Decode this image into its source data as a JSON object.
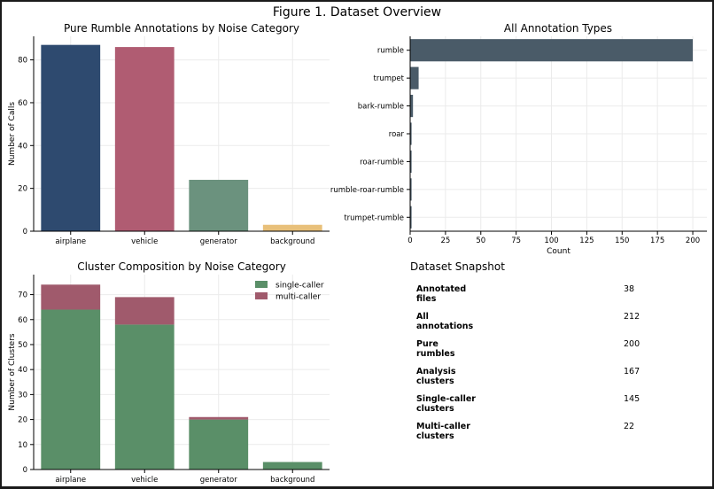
{
  "figure_title": "Figure 1. Dataset Overview",
  "colors": {
    "airplane": "#2e4a6f",
    "vehicle": "#b05c72",
    "generator": "#6b927e",
    "background": "#e8c07a",
    "annotation_bar": "#4a5b68",
    "single_caller": "#5a8f68",
    "multi_caller": "#a05a6c"
  },
  "chart_data": [
    {
      "type": "bar",
      "title": "Pure Rumble Annotations by Noise Category",
      "xlabel": "",
      "ylabel": "Number of Calls",
      "categories": [
        "airplane",
        "vehicle",
        "generator",
        "background"
      ],
      "values": [
        87,
        86,
        24,
        3
      ],
      "ylim": [
        0,
        91
      ],
      "yticks": [
        "0",
        "20",
        "40",
        "60",
        "80"
      ],
      "grid": true
    },
    {
      "type": "bar",
      "orientation": "horizontal",
      "title": "All Annotation Types",
      "xlabel": "Count",
      "ylabel": "",
      "categories": [
        "rumble",
        "trumpet",
        "bark-rumble",
        "roar",
        "roar-rumble",
        "rumble-roar-rumble",
        "trumpet-rumble"
      ],
      "values": [
        200,
        6,
        2,
        1,
        1,
        1,
        1
      ],
      "xlim": [
        0,
        210
      ],
      "xticks": [
        "0",
        "25",
        "50",
        "75",
        "100",
        "125",
        "150",
        "175",
        "200"
      ],
      "grid": true
    },
    {
      "type": "bar",
      "stacked": true,
      "title": "Cluster Composition by Noise Category",
      "xlabel": "",
      "ylabel": "Number of Clusters",
      "categories": [
        "airplane",
        "vehicle",
        "generator",
        "background"
      ],
      "series": [
        {
          "name": "single-caller",
          "values": [
            64,
            58,
            20,
            3
          ]
        },
        {
          "name": "multi-caller",
          "values": [
            10,
            11,
            1,
            0
          ]
        }
      ],
      "ylim": [
        0,
        78
      ],
      "yticks": [
        "0",
        "10",
        "20",
        "30",
        "40",
        "50",
        "60",
        "70"
      ],
      "legend": "top-right",
      "grid": true
    }
  ],
  "snapshot": {
    "title": "Dataset Snapshot",
    "rows": [
      {
        "label_1": "Annotated",
        "label_2": "files",
        "value": "38"
      },
      {
        "label_1": "All",
        "label_2": "annotations",
        "value": "212"
      },
      {
        "label_1": "Pure",
        "label_2": "rumbles",
        "value": "200"
      },
      {
        "label_1": "Analysis",
        "label_2": "clusters",
        "value": "167"
      },
      {
        "label_1": "Single-caller",
        "label_2": "clusters",
        "value": "145"
      },
      {
        "label_1": "Multi-caller",
        "label_2": "clusters",
        "value": "22"
      }
    ]
  }
}
